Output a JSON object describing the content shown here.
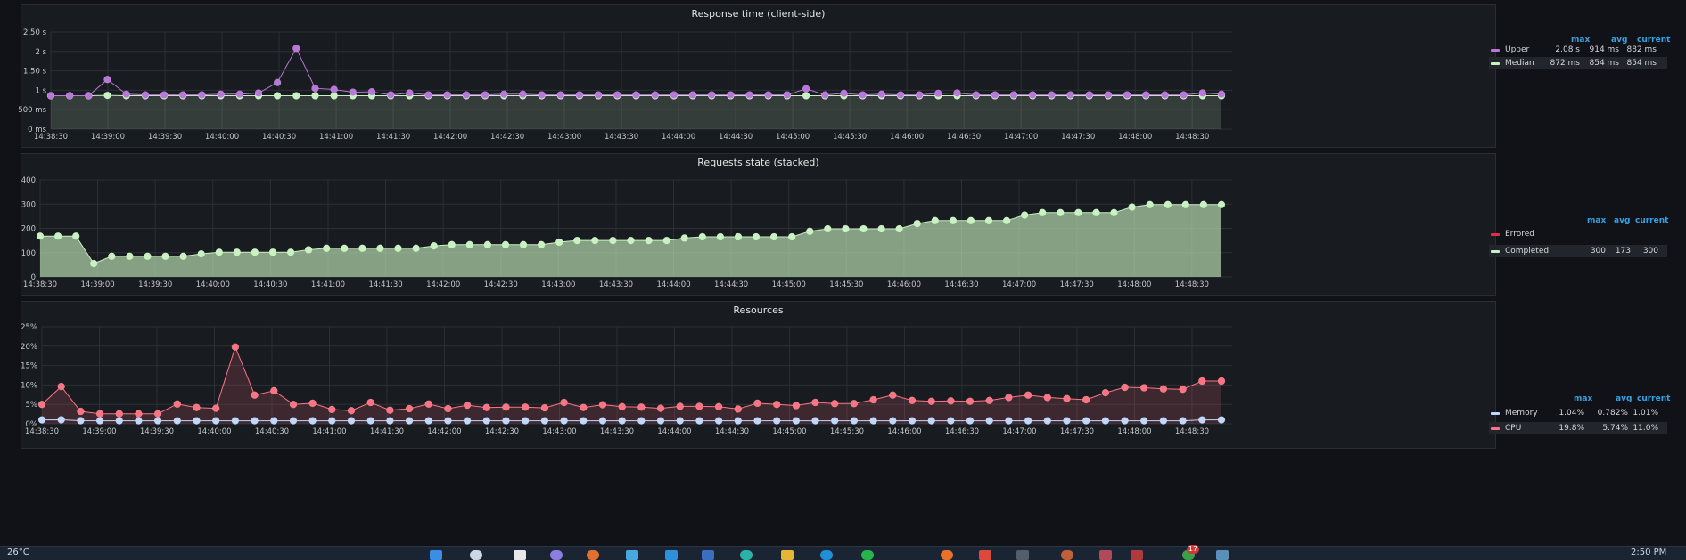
{
  "panels": [
    {
      "title": "Response time (client-side)",
      "legend_headers": [
        "max",
        "avg",
        "current"
      ],
      "legend": [
        {
          "name": "Upper",
          "color": "#b877d9",
          "max": "2.08 s",
          "avg": "914 ms",
          "current": "882 ms"
        },
        {
          "name": "Median",
          "color": "#c8f2c2",
          "max": "872 ms",
          "avg": "854 ms",
          "current": "854 ms"
        }
      ]
    },
    {
      "title": "Requests state (stacked)",
      "legend_headers": [
        "max",
        "avg",
        "current"
      ],
      "legend": [
        {
          "name": "Errored",
          "color": "#e02f44",
          "max": "",
          "avg": "",
          "current": ""
        },
        {
          "name": "Completed",
          "color": "#c8f2c2",
          "max": "300",
          "avg": "173",
          "current": "300"
        }
      ]
    },
    {
      "title": "Resources",
      "legend_headers": [
        "max",
        "avg",
        "current"
      ],
      "legend": [
        {
          "name": "Memory",
          "color": "#c0d8ff",
          "max": "1.04%",
          "avg": "0.782%",
          "current": "1.01%"
        },
        {
          "name": "CPU",
          "color": "#ff7383",
          "max": "19.8%",
          "avg": "5.74%",
          "current": "11.0%"
        }
      ]
    }
  ],
  "chart_data": [
    {
      "type": "line",
      "title": "Response time (client-side)",
      "x_ticks": [
        "14:38:30",
        "14:39:00",
        "14:39:30",
        "14:40:00",
        "14:40:30",
        "14:41:00",
        "14:41:30",
        "14:42:00",
        "14:42:30",
        "14:43:00",
        "14:43:30",
        "14:44:00",
        "14:44:30",
        "14:45:00",
        "14:45:30",
        "14:46:00",
        "14:46:30",
        "14:47:00",
        "14:47:30",
        "14:48:00",
        "14:48:30"
      ],
      "y_ticks": [
        "0 ms",
        "500 ms",
        "1 s",
        "1.50 s",
        "2 s",
        "2.50 s"
      ],
      "ylim": [
        0,
        2.5
      ],
      "y_unit": "s",
      "series": [
        {
          "name": "Upper",
          "color": "#b877d9",
          "fill": false,
          "values": [
            0.86,
            0.86,
            0.86,
            1.28,
            0.9,
            0.88,
            0.88,
            0.88,
            0.88,
            0.9,
            0.9,
            0.93,
            1.2,
            2.08,
            1.05,
            1.02,
            0.95,
            0.96,
            0.88,
            0.93,
            0.88,
            0.88,
            0.88,
            0.88,
            0.9,
            0.9,
            0.88,
            0.88,
            0.88,
            0.88,
            0.88,
            0.88,
            0.88,
            0.88,
            0.88,
            0.88,
            0.88,
            0.88,
            0.88,
            0.88,
            1.04,
            0.88,
            0.92,
            0.88,
            0.9,
            0.88,
            0.88,
            0.92,
            0.93,
            0.88,
            0.88,
            0.88,
            0.88,
            0.88,
            0.88,
            0.88,
            0.88,
            0.88,
            0.88,
            0.88,
            0.88,
            0.93,
            0.9
          ]
        },
        {
          "name": "Median",
          "color": "#c8f2c2",
          "fill": true,
          "values": [
            0.86,
            0.86,
            0.86,
            0.87,
            0.86,
            0.86,
            0.86,
            0.86,
            0.86,
            0.86,
            0.86,
            0.86,
            0.86,
            0.86,
            0.86,
            0.86,
            0.86,
            0.86,
            0.86,
            0.86,
            0.86,
            0.86,
            0.86,
            0.86,
            0.86,
            0.86,
            0.86,
            0.86,
            0.86,
            0.86,
            0.86,
            0.86,
            0.86,
            0.86,
            0.86,
            0.86,
            0.86,
            0.86,
            0.86,
            0.86,
            0.86,
            0.86,
            0.86,
            0.86,
            0.86,
            0.86,
            0.86,
            0.86,
            0.86,
            0.86,
            0.86,
            0.86,
            0.86,
            0.86,
            0.86,
            0.86,
            0.86,
            0.86,
            0.86,
            0.86,
            0.86,
            0.86,
            0.86
          ]
        }
      ]
    },
    {
      "type": "area",
      "title": "Requests state (stacked)",
      "x_ticks": [
        "14:38:30",
        "14:39:00",
        "14:39:30",
        "14:40:00",
        "14:40:30",
        "14:41:00",
        "14:41:30",
        "14:42:00",
        "14:42:30",
        "14:43:00",
        "14:43:30",
        "14:44:00",
        "14:44:30",
        "14:45:00",
        "14:45:30",
        "14:46:00",
        "14:46:30",
        "14:47:00",
        "14:47:30",
        "14:48:00",
        "14:48:30"
      ],
      "y_ticks": [
        "0",
        "100",
        "200",
        "300",
        "400"
      ],
      "ylim": [
        0,
        400
      ],
      "series": [
        {
          "name": "Completed",
          "color": "#c8f2c2",
          "fill": true,
          "values": [
            168,
            168,
            168,
            55,
            85,
            85,
            85,
            85,
            85,
            95,
            102,
            102,
            102,
            102,
            102,
            112,
            118,
            118,
            118,
            118,
            118,
            118,
            128,
            133,
            133,
            133,
            133,
            133,
            133,
            143,
            150,
            150,
            150,
            150,
            150,
            150,
            160,
            165,
            165,
            165,
            165,
            165,
            165,
            188,
            198,
            198,
            198,
            198,
            198,
            220,
            232,
            232,
            232,
            232,
            232,
            255,
            265,
            265,
            265,
            265,
            265,
            288,
            298,
            298,
            298,
            298,
            298
          ]
        }
      ]
    },
    {
      "type": "line",
      "title": "Resources",
      "x_ticks": [
        "14:38:30",
        "14:39:00",
        "14:39:30",
        "14:40:00",
        "14:40:30",
        "14:41:00",
        "14:41:30",
        "14:42:00",
        "14:42:30",
        "14:43:00",
        "14:43:30",
        "14:44:00",
        "14:44:30",
        "14:45:00",
        "14:45:30",
        "14:46:00",
        "14:46:30",
        "14:47:00",
        "14:47:30",
        "14:48:00",
        "14:48:30"
      ],
      "y_ticks": [
        "0%",
        "5%",
        "10%",
        "15%",
        "20%",
        "25%"
      ],
      "ylim": [
        0,
        25
      ],
      "y_unit": "%",
      "series": [
        {
          "name": "CPU",
          "color": "#ff7383",
          "fill": true,
          "values": [
            5.0,
            9.6,
            3.2,
            2.6,
            2.6,
            2.6,
            2.6,
            5.1,
            4.2,
            4.0,
            19.8,
            7.4,
            8.5,
            5.0,
            5.3,
            3.7,
            3.4,
            5.5,
            3.5,
            3.9,
            5.1,
            3.9,
            4.8,
            4.2,
            4.3,
            4.3,
            4.1,
            5.5,
            4.2,
            4.9,
            4.4,
            4.3,
            4.0,
            4.5,
            4.5,
            4.4,
            3.8,
            5.3,
            5.0,
            4.7,
            5.5,
            5.2,
            5.2,
            6.2,
            7.4,
            6.0,
            5.8,
            5.9,
            5.8,
            6.0,
            6.8,
            7.4,
            6.8,
            6.5,
            6.2,
            8.0,
            9.4,
            9.3,
            9.0,
            8.9,
            11.0,
            11.0
          ]
        },
        {
          "name": "Memory",
          "color": "#c0d8ff",
          "fill": false,
          "values": [
            1.01,
            1.04,
            0.8,
            0.78,
            0.78,
            0.78,
            0.78,
            0.78,
            0.78,
            0.78,
            0.78,
            0.78,
            0.78,
            0.78,
            0.78,
            0.78,
            0.78,
            0.78,
            0.78,
            0.78,
            0.78,
            0.78,
            0.78,
            0.78,
            0.78,
            0.78,
            0.78,
            0.78,
            0.78,
            0.78,
            0.78,
            0.78,
            0.78,
            0.78,
            0.78,
            0.78,
            0.78,
            0.78,
            0.78,
            0.78,
            0.78,
            0.78,
            0.78,
            0.78,
            0.78,
            0.78,
            0.78,
            0.78,
            0.78,
            0.78,
            0.78,
            0.78,
            0.78,
            0.78,
            0.78,
            0.78,
            0.78,
            0.78,
            0.78,
            0.78,
            1.01,
            1.01
          ]
        }
      ]
    }
  ],
  "taskbar": {
    "weather": "26°C",
    "clock": "2:50 PM",
    "badge": "17"
  }
}
